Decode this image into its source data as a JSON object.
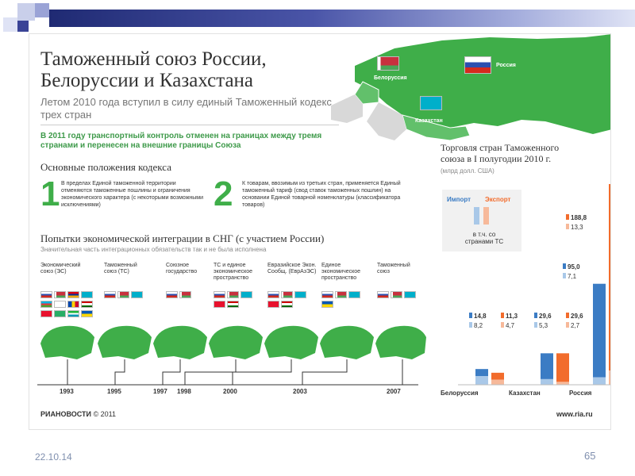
{
  "slide": {
    "date": "22.10.14",
    "page": "65"
  },
  "header": {
    "title_line1": "Таможенный союз России,",
    "title_line2": "Белоруссии и Казахстана",
    "subtitle": "Летом 2010 года вступил в силу единый Таможенный кодекс трех стран",
    "note": "В 2011 году транспортный контроль отменен на границах между тремя странами и перенесен на внешние границы Союза"
  },
  "map": {
    "labels": [
      "Белоруссия",
      "Россия",
      "Казахстан"
    ]
  },
  "provisions": {
    "title": "Основные положения кодекса",
    "items": [
      {
        "num": "1",
        "text": "В пределах Единой таможенной территории отменяются таможенные пошлины и ограничения экономического характера (с некоторыми возможными исключениями)"
      },
      {
        "num": "2",
        "text": "К товарам, ввозимым из третьих стран, применяется Единый таможенный тариф (свод ставок таможенных пошлин) на основании Единой товарной номенклатуры (классификатора товаров)"
      }
    ]
  },
  "integration": {
    "title": "Попытки экономической интеграции в СНГ (с участием России)",
    "subtitle": "Значительная часть интеграционных обязательств так и не была исполнена",
    "stages": [
      {
        "label": "Экономический союз (ЭС)"
      },
      {
        "label": "Таможенный союз (ТС)"
      },
      {
        "label": "Союзное государство"
      },
      {
        "label": "ТС и единое экономическое пространство"
      },
      {
        "label": "Евразийское Экон. Сообщ. (ЕврАзЭС)"
      },
      {
        "label": "Единое экономическое пространство"
      },
      {
        "label": "Таможенный союз"
      }
    ],
    "years": [
      "1993",
      "1995",
      "1997",
      "1998",
      "2000",
      "2003",
      "2007"
    ]
  },
  "chart_data": {
    "type": "bar",
    "title": "Торговля стран Таможенного союза в I полугодии 2010 г.",
    "unit": "(млрд долл. США)",
    "legend": {
      "import": "Импорт",
      "export": "Экспорт",
      "within_note": "в т.ч. со странами ТС"
    },
    "categories": [
      "Белоруссия",
      "Казахстан",
      "Россия"
    ],
    "series": [
      {
        "name": "Импорт",
        "values": [
          14.8,
          29.6,
          95.0
        ],
        "within_tc": [
          8.2,
          5.3,
          7.1
        ]
      },
      {
        "name": "Экспорт",
        "values": [
          11.3,
          29.6,
          188.8
        ],
        "within_tc": [
          4.7,
          2.7,
          13.3
        ]
      }
    ],
    "colors": {
      "import": "#3b7cc4",
      "import_light": "#a9c8e8",
      "export": "#f26c2c",
      "export_light": "#f7b99a"
    },
    "ylim": [
      0,
      200
    ]
  },
  "footer": {
    "logo": "РИАНОВОСТИ",
    "copyright": "© 2011",
    "www": "www.ria.ru"
  }
}
